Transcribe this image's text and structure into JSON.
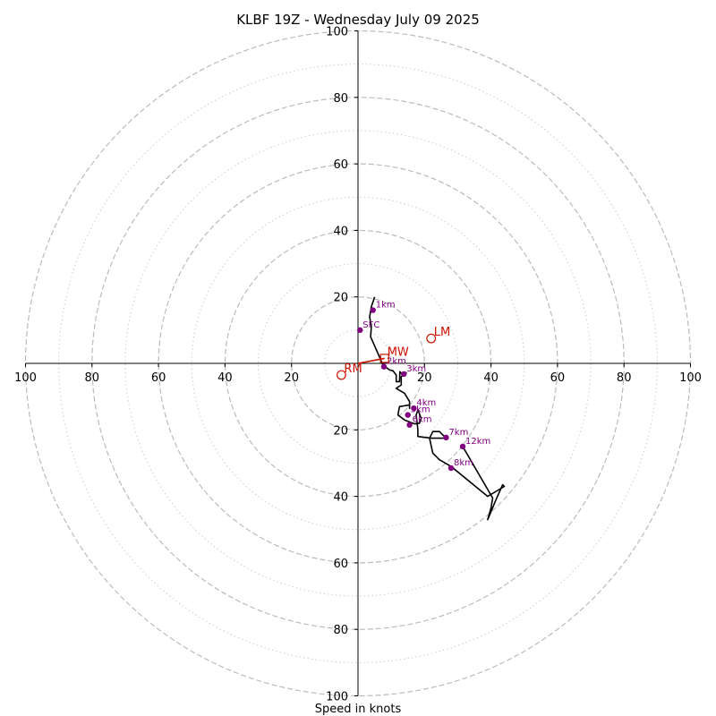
{
  "chart_data": {
    "type": "scatter",
    "title": "KLBF 19Z - Wednesday July 09 2025",
    "xlabel": "Speed in knots",
    "ylabel": "",
    "xlim": [
      -100,
      100
    ],
    "ylim": [
      -100,
      100
    ],
    "x_ticks": [
      "100",
      "80",
      "60",
      "40",
      "20",
      "20",
      "40",
      "60",
      "80",
      "100"
    ],
    "y_ticks": [
      "100",
      "80",
      "60",
      "40",
      "20",
      "20",
      "40",
      "60",
      "80",
      "100"
    ],
    "rings_major": [
      20,
      40,
      60,
      80,
      100
    ],
    "rings_minor": [
      10,
      30,
      50,
      70,
      90
    ],
    "trace": [
      [
        5,
        20
      ],
      [
        4,
        17
      ],
      [
        3.5,
        14
      ],
      [
        4,
        11
      ],
      [
        3.8,
        8
      ],
      [
        6,
        3
      ],
      [
        7.5,
        -0.5
      ],
      [
        9.5,
        -2
      ],
      [
        10.5,
        -2.2
      ],
      [
        11.5,
        -3.5
      ],
      [
        11.5,
        -5.5
      ],
      [
        12.5,
        -5.5
      ],
      [
        12.6,
        -2.5
      ],
      [
        13.5,
        -3.5
      ],
      [
        14.5,
        -2.8
      ],
      [
        13,
        -4
      ],
      [
        13,
        -6.5
      ],
      [
        11.5,
        -7.5
      ],
      [
        14,
        -9
      ],
      [
        15.5,
        -11.5
      ],
      [
        15.5,
        -13.5
      ],
      [
        15.5,
        -12.5
      ],
      [
        12.5,
        -13
      ],
      [
        12,
        -15.5
      ],
      [
        14,
        -17
      ],
      [
        17,
        -18.2
      ],
      [
        18.5,
        -18
      ],
      [
        19,
        -16.5
      ],
      [
        18,
        -14
      ],
      [
        17.5,
        -15.5
      ],
      [
        17.8,
        -18
      ],
      [
        18,
        -20
      ],
      [
        18,
        -22
      ],
      [
        22,
        -22.5
      ],
      [
        26.5,
        -22.5
      ],
      [
        24.5,
        -20.5
      ],
      [
        22.5,
        -20.5
      ],
      [
        21.5,
        -22.5
      ],
      [
        22.5,
        -27
      ],
      [
        24.5,
        -29
      ],
      [
        28,
        -31
      ],
      [
        39,
        -40
      ],
      [
        44,
        -37
      ],
      [
        43.5,
        -36.5
      ],
      [
        41.5,
        -41
      ],
      [
        39,
        -47
      ],
      [
        40,
        -43.5
      ],
      [
        40.5,
        -40.5
      ],
      [
        31.5,
        -25
      ]
    ],
    "height_markers": [
      {
        "label": "SFC",
        "x": 0.6,
        "y": 10
      },
      {
        "label": "1km",
        "x": 4.5,
        "y": 16
      },
      {
        "label": "2km",
        "x": 7.8,
        "y": -1
      },
      {
        "label": "3km",
        "x": 13.8,
        "y": -3.2
      },
      {
        "label": "4km",
        "x": 16.8,
        "y": -13.5
      },
      {
        "label": "5km",
        "x": 15,
        "y": -15.5
      },
      {
        "label": "6km",
        "x": 15.5,
        "y": -18.5
      },
      {
        "label": "7km",
        "x": 26.5,
        "y": -22.3
      },
      {
        "label": "8km",
        "x": 28,
        "y": -31.5
      },
      {
        "label": "12km",
        "x": 31.5,
        "y": -25
      }
    ],
    "storm_motion": [
      {
        "label": "MW",
        "x": 8,
        "y": 1.5,
        "marker": "square"
      },
      {
        "label": "LM",
        "x": 22,
        "y": 7.5,
        "marker": "circle"
      },
      {
        "label": "RM",
        "x": -5,
        "y": -3.5,
        "marker": "circle"
      }
    ],
    "colors": {
      "trace": "#000000",
      "markers": "#800080",
      "storm_motion": "#cc1100",
      "rings": "#bbbbbb"
    }
  }
}
